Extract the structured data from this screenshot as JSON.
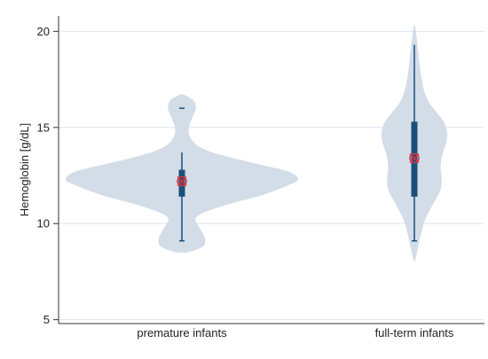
{
  "chart_data": {
    "type": "violin",
    "ylabel": "Hemoglobin [g/dL]",
    "ylim": [
      4.8,
      20.8
    ],
    "yticks": [
      5,
      10,
      15,
      20
    ],
    "grid": true,
    "colors": {
      "violin_fill": "#d3dde8",
      "box": "#1b4f7a",
      "median_marker": "#e0303a",
      "grid": "#dde5ee"
    },
    "categories": [
      "premature infants",
      "full-term infants"
    ],
    "groups": [
      {
        "label": "premature infants",
        "min": 9.1,
        "q1": 11.4,
        "median": 12.2,
        "q3": 12.8,
        "whisker_high": 13.7,
        "outliers": [
          16.0
        ],
        "density": [
          [
            8.5,
            0.05
          ],
          [
            8.8,
            0.18
          ],
          [
            9.2,
            0.2
          ],
          [
            9.6,
            0.17
          ],
          [
            10.0,
            0.13
          ],
          [
            10.3,
            0.12
          ],
          [
            10.6,
            0.2
          ],
          [
            11.0,
            0.4
          ],
          [
            11.5,
            0.7
          ],
          [
            12.0,
            0.92
          ],
          [
            12.3,
            1.0
          ],
          [
            12.7,
            0.92
          ],
          [
            13.1,
            0.65
          ],
          [
            13.6,
            0.32
          ],
          [
            14.0,
            0.15
          ],
          [
            14.5,
            0.07
          ],
          [
            15.0,
            0.06
          ],
          [
            15.5,
            0.09
          ],
          [
            16.0,
            0.12
          ],
          [
            16.4,
            0.1
          ],
          [
            16.7,
            0.02
          ]
        ]
      },
      {
        "label": "full-term infants",
        "min": 9.1,
        "q1": 11.4,
        "median": 13.4,
        "q3": 15.3,
        "whisker_high": 19.3,
        "outliers": [],
        "density": [
          [
            8.1,
            0.02
          ],
          [
            8.8,
            0.08
          ],
          [
            9.5,
            0.14
          ],
          [
            10.2,
            0.22
          ],
          [
            11.0,
            0.38
          ],
          [
            11.7,
            0.53
          ],
          [
            12.3,
            0.56
          ],
          [
            12.8,
            0.54
          ],
          [
            13.3,
            0.55
          ],
          [
            13.8,
            0.6
          ],
          [
            14.3,
            0.66
          ],
          [
            14.8,
            0.67
          ],
          [
            15.3,
            0.6
          ],
          [
            15.8,
            0.45
          ],
          [
            16.3,
            0.3
          ],
          [
            16.9,
            0.2
          ],
          [
            17.5,
            0.15
          ],
          [
            18.2,
            0.11
          ],
          [
            18.9,
            0.08
          ],
          [
            19.6,
            0.05
          ],
          [
            20.3,
            0.01
          ]
        ]
      }
    ]
  }
}
